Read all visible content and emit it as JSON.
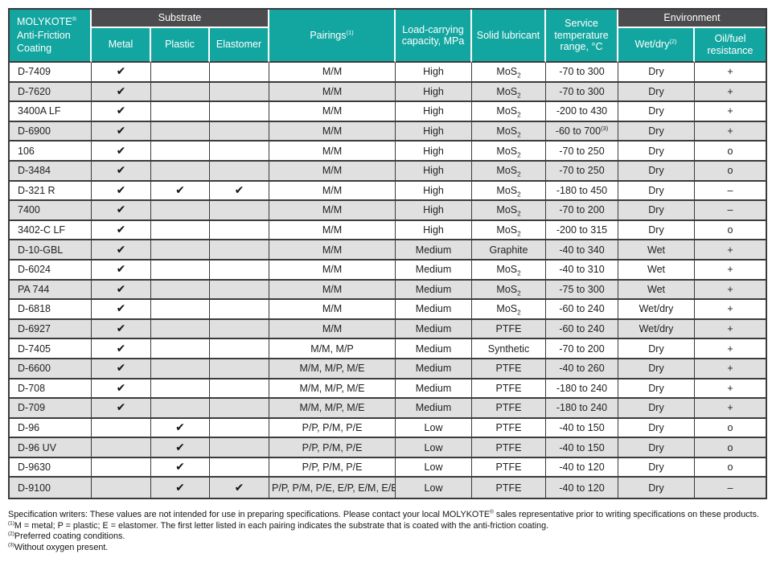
{
  "colors": {
    "teal": "#13a6a0",
    "dark_band": "#4c4c4e",
    "stripe": "#e0e0e0",
    "border": "#3b3b3d",
    "header_text": "#ffffff"
  },
  "icons": {
    "check": "✔"
  },
  "table": {
    "header": {
      "product": "MOLYKOTE^{®} Anti-Friction Coating",
      "substrate_group": "Substrate",
      "substrate_cols": [
        "Metal",
        "Plastic",
        "Elastomer"
      ],
      "pairings": "Pairings^{(1)}",
      "load": "Load-carrying capacity, MPa",
      "lubricant": "Solid lubricant",
      "temp": "Service temperature range, °C",
      "environment_group": "Environment",
      "environment_cols": [
        "Wet/dry^{(2)}",
        "Oil/fuel resistance"
      ]
    },
    "rows": [
      {
        "product": "D-7409",
        "metal": true,
        "plastic": false,
        "elastomer": false,
        "pairings": "M/M",
        "load": "High",
        "lubricant": "MoS_{2}",
        "temp": "-70 to 300",
        "wet_dry": "Dry",
        "oil_fuel": "+"
      },
      {
        "product": "D-7620",
        "metal": true,
        "plastic": false,
        "elastomer": false,
        "pairings": "M/M",
        "load": "High",
        "lubricant": "MoS_{2}",
        "temp": "-70 to 300",
        "wet_dry": "Dry",
        "oil_fuel": "+"
      },
      {
        "product": "3400A LF",
        "metal": true,
        "plastic": false,
        "elastomer": false,
        "pairings": "M/M",
        "load": "High",
        "lubricant": "MoS_{2}",
        "temp": "-200 to 430",
        "wet_dry": "Dry",
        "oil_fuel": "+"
      },
      {
        "product": "D-6900",
        "metal": true,
        "plastic": false,
        "elastomer": false,
        "pairings": "M/M",
        "load": "High",
        "lubricant": "MoS_{2}",
        "temp": "-60 to 700^{(3)}",
        "wet_dry": "Dry",
        "oil_fuel": "+"
      },
      {
        "product": "106",
        "metal": true,
        "plastic": false,
        "elastomer": false,
        "pairings": "M/M",
        "load": "High",
        "lubricant": "MoS_{2}",
        "temp": "-70 to 250",
        "wet_dry": "Dry",
        "oil_fuel": "o"
      },
      {
        "product": "D-3484",
        "metal": true,
        "plastic": false,
        "elastomer": false,
        "pairings": "M/M",
        "load": "High",
        "lubricant": "MoS_{2}",
        "temp": "-70 to 250",
        "wet_dry": "Dry",
        "oil_fuel": "o"
      },
      {
        "product": "D-321 R",
        "metal": true,
        "plastic": true,
        "elastomer": true,
        "pairings": "M/M",
        "load": "High",
        "lubricant": "MoS_{2}",
        "temp": "-180 to 450",
        "wet_dry": "Dry",
        "oil_fuel": "–"
      },
      {
        "product": "7400",
        "metal": true,
        "plastic": false,
        "elastomer": false,
        "pairings": "M/M",
        "load": "High",
        "lubricant": "MoS_{2}",
        "temp": "-70 to 200",
        "wet_dry": "Dry",
        "oil_fuel": "–"
      },
      {
        "product": "3402-C LF",
        "metal": true,
        "plastic": false,
        "elastomer": false,
        "pairings": "M/M",
        "load": "High",
        "lubricant": "MoS_{2}",
        "temp": "-200 to 315",
        "wet_dry": "Dry",
        "oil_fuel": "o"
      },
      {
        "product": "D-10-GBL",
        "metal": true,
        "plastic": false,
        "elastomer": false,
        "pairings": "M/M",
        "load": "Medium",
        "lubricant": "Graphite",
        "temp": "-40 to 340",
        "wet_dry": "Wet",
        "oil_fuel": "+"
      },
      {
        "product": "D-6024",
        "metal": true,
        "plastic": false,
        "elastomer": false,
        "pairings": "M/M",
        "load": "Medium",
        "lubricant": "MoS_{2}",
        "temp": "-40 to 310",
        "wet_dry": "Wet",
        "oil_fuel": "+"
      },
      {
        "product": "PA 744",
        "metal": true,
        "plastic": false,
        "elastomer": false,
        "pairings": "M/M",
        "load": "Medium",
        "lubricant": "MoS_{2}",
        "temp": "-75 to 300",
        "wet_dry": "Wet",
        "oil_fuel": "+"
      },
      {
        "product": "D-6818",
        "metal": true,
        "plastic": false,
        "elastomer": false,
        "pairings": "M/M",
        "load": "Medium",
        "lubricant": "MoS_{2}",
        "temp": "-60 to 240",
        "wet_dry": "Wet/dry",
        "oil_fuel": "+"
      },
      {
        "product": "D-6927",
        "metal": true,
        "plastic": false,
        "elastomer": false,
        "pairings": "M/M",
        "load": "Medium",
        "lubricant": "PTFE",
        "temp": "-60 to 240",
        "wet_dry": "Wet/dry",
        "oil_fuel": "+"
      },
      {
        "product": "D-7405",
        "metal": true,
        "plastic": false,
        "elastomer": false,
        "pairings": "M/M, M/P",
        "load": "Medium",
        "lubricant": "Synthetic",
        "temp": "-70 to 200",
        "wet_dry": "Dry",
        "oil_fuel": "+"
      },
      {
        "product": "D-6600",
        "metal": true,
        "plastic": false,
        "elastomer": false,
        "pairings": "M/M, M/P, M/E",
        "load": "Medium",
        "lubricant": "PTFE",
        "temp": "-40 to 260",
        "wet_dry": "Dry",
        "oil_fuel": "+"
      },
      {
        "product": "D-708",
        "metal": true,
        "plastic": false,
        "elastomer": false,
        "pairings": "M/M, M/P, M/E",
        "load": "Medium",
        "lubricant": "PTFE",
        "temp": "-180 to 240",
        "wet_dry": "Dry",
        "oil_fuel": "+"
      },
      {
        "product": "D-709",
        "metal": true,
        "plastic": false,
        "elastomer": false,
        "pairings": "M/M, M/P, M/E",
        "load": "Medium",
        "lubricant": "PTFE",
        "temp": "-180 to 240",
        "wet_dry": "Dry",
        "oil_fuel": "+"
      },
      {
        "product": "D-96",
        "metal": false,
        "plastic": true,
        "elastomer": false,
        "pairings": "P/P, P/M, P/E",
        "load": "Low",
        "lubricant": "PTFE",
        "temp": "-40 to 150",
        "wet_dry": "Dry",
        "oil_fuel": "o"
      },
      {
        "product": "D-96 UV",
        "metal": false,
        "plastic": true,
        "elastomer": false,
        "pairings": "P/P, P/M, P/E",
        "load": "Low",
        "lubricant": "PTFE",
        "temp": "-40 to 150",
        "wet_dry": "Dry",
        "oil_fuel": "o"
      },
      {
        "product": "D-9630",
        "metal": false,
        "plastic": true,
        "elastomer": false,
        "pairings": "P/P, P/M, P/E",
        "load": "Low",
        "lubricant": "PTFE",
        "temp": "-40 to 120",
        "wet_dry": "Dry",
        "oil_fuel": "o"
      },
      {
        "product": "D-9100",
        "metal": false,
        "plastic": true,
        "elastomer": true,
        "pairings": "P/P, P/M, P/E, E/P, E/M, E/E",
        "load": "Low",
        "lubricant": "PTFE",
        "temp": "-40 to 120",
        "wet_dry": "Dry",
        "oil_fuel": "–"
      }
    ]
  },
  "footnotes": [
    "Specification writers: These values are not intended for use in preparing specifications. Please contact your local MOLYKOTE^{®} sales representative prior to writing specifications on these products.",
    "^{(1)}M = metal; P = plastic; E = elastomer. The first letter listed in each pairing indicates the substrate that is coated with the anti-friction coating.",
    "^{(2)}Preferred coating conditions.",
    "^{(3)}Without oxygen present."
  ]
}
